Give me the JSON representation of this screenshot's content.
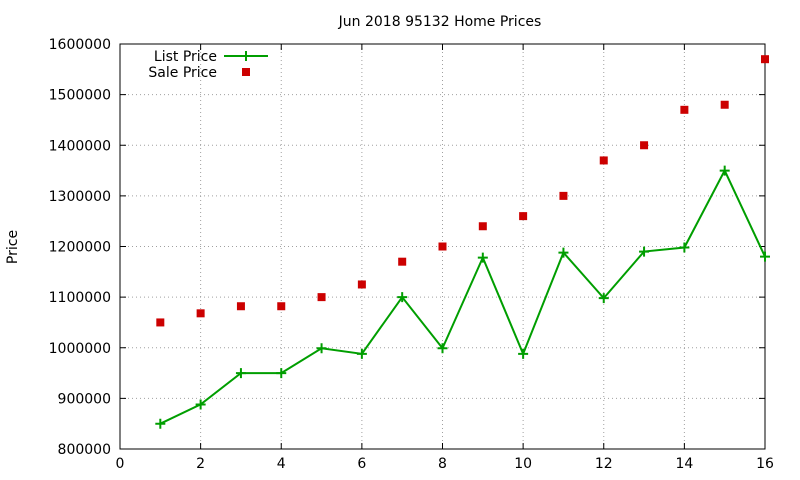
{
  "chart_data": {
    "type": "line",
    "title": "Jun 2018 95132 Home Prices",
    "xlabel": "",
    "ylabel": "Price",
    "xlim": [
      0,
      16
    ],
    "ylim": [
      800000,
      1600000
    ],
    "xticks": [
      "0",
      "2",
      "4",
      "6",
      "8",
      "10",
      "12",
      "14",
      "16"
    ],
    "yticks": [
      "800000",
      "900000",
      "1000000",
      "1100000",
      "1200000",
      "1300000",
      "1400000",
      "1500000",
      "1600000"
    ],
    "grid": true,
    "legend_position": "top-left",
    "series": [
      {
        "name": "List Price",
        "style": "line-with-plus-markers",
        "color": "#009e00",
        "x": [
          1,
          2,
          3,
          4,
          5,
          6,
          7,
          8,
          9,
          10,
          11,
          12,
          13,
          14,
          15,
          16
        ],
        "y": [
          850000,
          888000,
          950000,
          950000,
          999000,
          988000,
          1100000,
          999000,
          1178000,
          988000,
          1188000,
          1098000,
          1190000,
          1198000,
          1350000,
          1180000
        ]
      },
      {
        "name": "Sale Price",
        "style": "square-markers",
        "color": "#cc0000",
        "x": [
          1,
          2,
          3,
          4,
          5,
          6,
          7,
          8,
          9,
          10,
          11,
          12,
          13,
          14,
          15,
          16
        ],
        "y": [
          1050000,
          1068000,
          1082000,
          1082000,
          1100000,
          1125000,
          1170000,
          1200000,
          1240000,
          1260000,
          1300000,
          1370000,
          1400000,
          1470000,
          1480000,
          1570000
        ]
      }
    ]
  }
}
